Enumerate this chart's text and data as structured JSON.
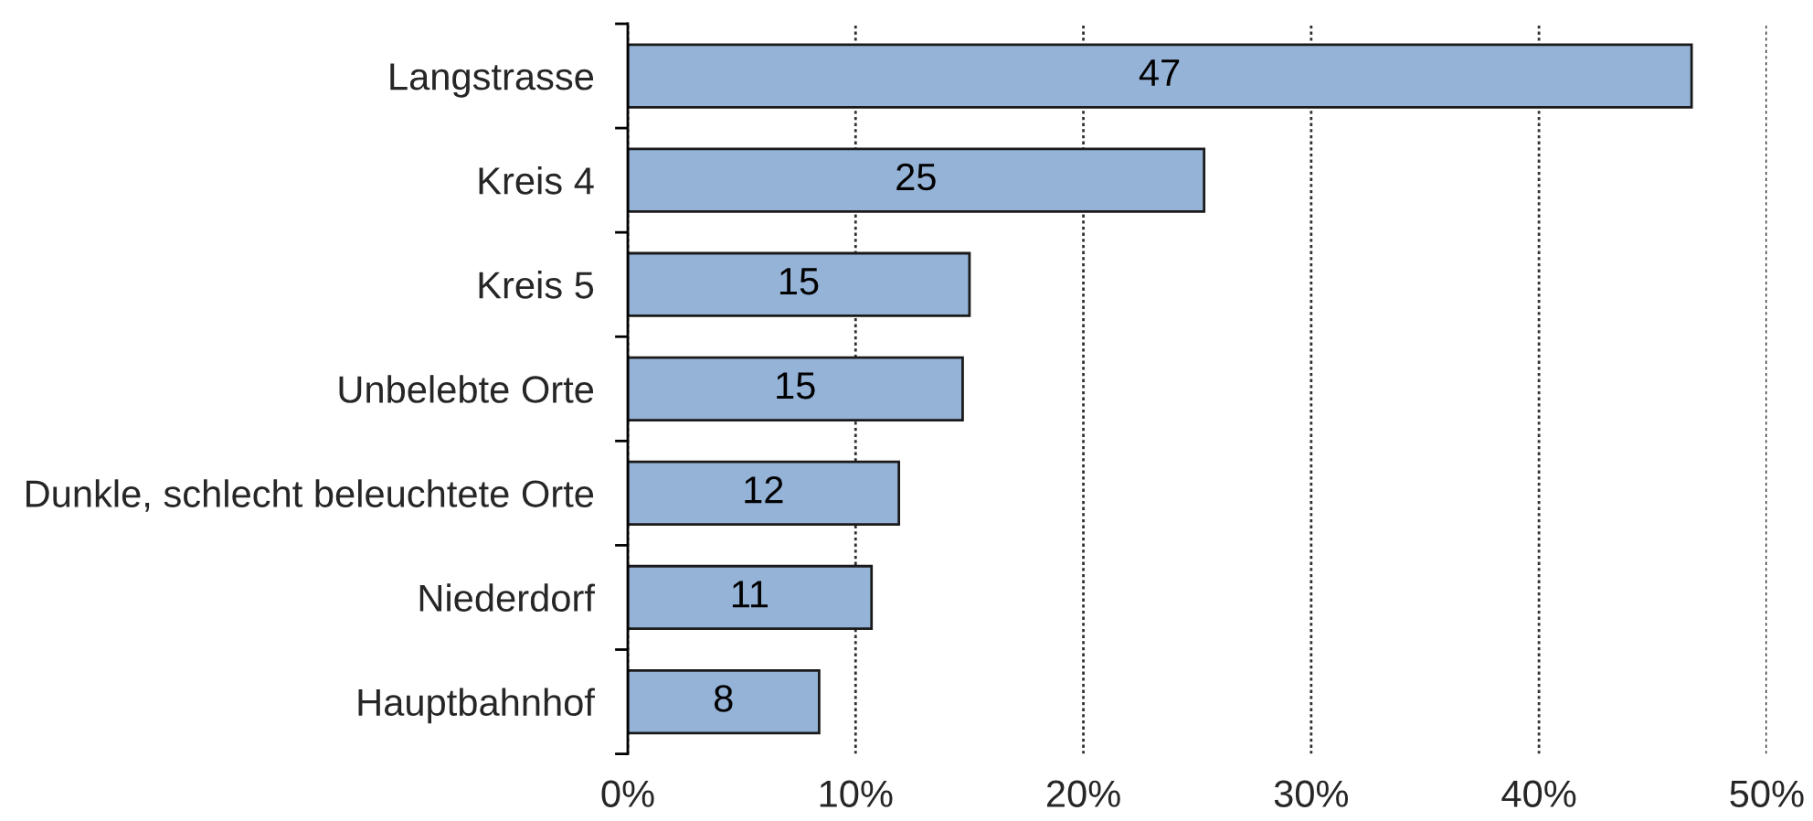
{
  "chart_data": {
    "type": "bar",
    "orientation": "horizontal",
    "categories": [
      "Langstrasse",
      "Kreis 4",
      "Kreis 5",
      "Unbelebte Orte",
      "Dunkle, schlecht beleuchtete Orte",
      "Niederdorf",
      "Hauptbahnhof"
    ],
    "values": [
      46.7,
      25.3,
      15.0,
      14.7,
      11.9,
      10.7,
      8.4
    ],
    "value_labels": [
      "47",
      "25",
      "15",
      "15",
      "12",
      "11",
      "8"
    ],
    "color": "#95b3d7",
    "xlim": [
      0,
      50
    ],
    "xticks": [
      {
        "value": 0,
        "label": "0%"
      },
      {
        "value": 10,
        "label": "10%"
      },
      {
        "value": 20,
        "label": "20%"
      },
      {
        "value": 30,
        "label": "30%"
      },
      {
        "value": 40,
        "label": "40%"
      },
      {
        "value": 50,
        "label": "50%"
      }
    ],
    "grid": "x"
  }
}
